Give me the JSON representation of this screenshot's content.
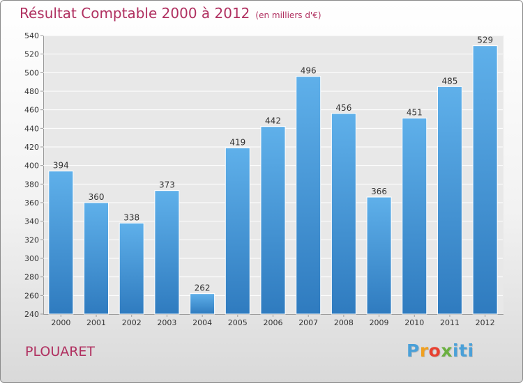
{
  "title": "Résultat Comptable 2000 à 2012",
  "subtitle": "(en milliers d'€)",
  "commune": "PLOUARET",
  "logo": {
    "text": "Proxiti"
  },
  "colors": {
    "title": "#b03060",
    "bar_light": "#5fb0ea",
    "bar_dark": "#2f7bbf",
    "plot_bg": "#e8e8e8"
  },
  "chart_data": {
    "type": "bar",
    "categories": [
      "2000",
      "2001",
      "2002",
      "2003",
      "2004",
      "2005",
      "2006",
      "2007",
      "2008",
      "2009",
      "2010",
      "2011",
      "2012"
    ],
    "values": [
      394,
      360,
      338,
      373,
      262,
      419,
      442,
      496,
      456,
      366,
      451,
      485,
      529
    ],
    "ylim": [
      240,
      540
    ],
    "yticks": [
      240,
      260,
      280,
      300,
      320,
      340,
      360,
      380,
      400,
      420,
      440,
      460,
      480,
      500,
      520,
      540
    ],
    "grid": true,
    "data_labels": true
  }
}
